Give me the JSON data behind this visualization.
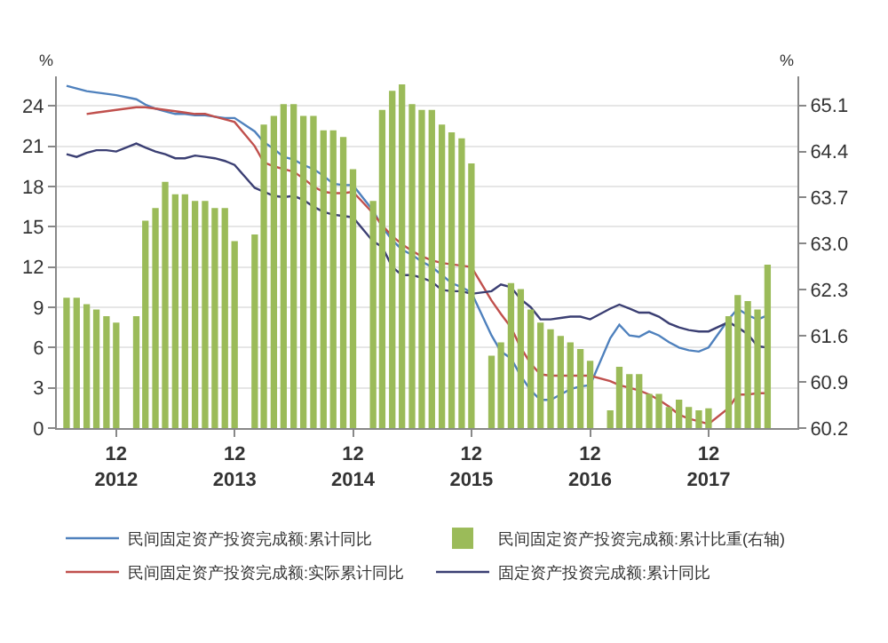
{
  "chart_data": {
    "type": "bar",
    "ylabel": "%",
    "y2label": "%",
    "x": [
      "2012-07",
      "2012-08",
      "2012-09",
      "2012-10",
      "2012-11",
      "2012-12",
      "2013-02",
      "2013-03",
      "2013-04",
      "2013-05",
      "2013-06",
      "2013-07",
      "2013-08",
      "2013-09",
      "2013-10",
      "2013-11",
      "2013-12",
      "2014-02",
      "2014-03",
      "2014-04",
      "2014-05",
      "2014-06",
      "2014-07",
      "2014-08",
      "2014-09",
      "2014-10",
      "2014-11",
      "2014-12",
      "2015-02",
      "2015-03",
      "2015-04",
      "2015-05",
      "2015-06",
      "2015-07",
      "2015-08",
      "2015-09",
      "2015-10",
      "2015-11",
      "2015-12",
      "2016-02",
      "2016-03",
      "2016-04",
      "2016-05",
      "2016-06",
      "2016-07",
      "2016-08",
      "2016-09",
      "2016-10",
      "2016-11",
      "2016-12",
      "2017-02",
      "2017-03",
      "2017-04",
      "2017-05",
      "2017-06",
      "2017-07",
      "2017-08",
      "2017-09",
      "2017-10",
      "2017-11",
      "2017-12",
      "2018-02",
      "2018-03",
      "2018-04",
      "2018-05",
      "2018-06"
    ],
    "series": [
      {
        "name": "民间固定资产投资完成额:累计比重(右轴)",
        "axis": "y2",
        "color": "#9bbb59",
        "values": [
          62.18,
          62.18,
          62.08,
          62.0,
          61.9,
          61.8,
          61.9,
          63.35,
          63.54,
          63.94,
          63.75,
          63.75,
          63.65,
          63.65,
          63.54,
          63.54,
          63.04,
          63.14,
          64.81,
          64.94,
          65.12,
          65.12,
          64.94,
          64.94,
          64.72,
          64.72,
          64.62,
          64.13,
          63.65,
          65.03,
          65.32,
          65.42,
          65.12,
          65.03,
          65.03,
          64.81,
          64.69,
          64.6,
          64.22,
          61.3,
          61.5,
          62.4,
          62.31,
          62.0,
          61.8,
          61.7,
          61.6,
          61.5,
          61.4,
          61.22,
          60.47,
          61.13,
          61.02,
          61.02,
          60.72,
          60.72,
          60.52,
          60.63,
          60.52,
          60.47,
          60.5,
          61.9,
          62.22,
          62.13,
          62.0,
          62.68
        ]
      },
      {
        "name": "民间固定资产投资完成额:累计同比",
        "type": "line",
        "color": "#4f81bd",
        "values": [
          25.5,
          25.3,
          25.1,
          25.0,
          24.9,
          24.8,
          24.5,
          24.1,
          23.8,
          23.6,
          23.4,
          23.4,
          23.3,
          23.3,
          23.2,
          23.1,
          23.1,
          22.1,
          21.3,
          20.8,
          20.2,
          20.0,
          19.6,
          19.3,
          18.8,
          18.2,
          18.1,
          18.1,
          16.2,
          15.0,
          14.0,
          13.3,
          12.9,
          12.4,
          12.0,
          11.4,
          10.8,
          10.5,
          10.1,
          6.9,
          5.7,
          5.2,
          3.9,
          2.8,
          2.1,
          2.1,
          2.5,
          2.9,
          3.1,
          3.2,
          6.7,
          7.7,
          6.9,
          6.8,
          7.2,
          6.9,
          6.4,
          6.0,
          5.8,
          5.7,
          6.0,
          8.1,
          8.9,
          8.4,
          8.1,
          8.4
        ]
      },
      {
        "name": "民间固定资产投资完成额:实际累计同比",
        "type": "line",
        "color": "#c0504d",
        "values": [
          null,
          null,
          23.4,
          23.5,
          23.6,
          23.7,
          23.9,
          23.9,
          23.8,
          23.7,
          23.6,
          23.5,
          23.4,
          23.4,
          23.2,
          23.0,
          22.8,
          21.0,
          19.8,
          19.5,
          19.3,
          19.1,
          18.6,
          18.0,
          17.6,
          17.5,
          17.5,
          17.6,
          16.0,
          15.1,
          14.3,
          13.7,
          13.2,
          12.8,
          12.5,
          12.3,
          12.2,
          12.1,
          12.0,
          9.5,
          8.5,
          7.5,
          6.0,
          4.8,
          4.0,
          3.9,
          3.9,
          3.9,
          3.9,
          3.9,
          3.5,
          3.2,
          3.0,
          2.8,
          2.5,
          2.1,
          1.6,
          1.0,
          0.7,
          0.5,
          0.3,
          1.5,
          2.5,
          2.5,
          2.6,
          2.6
        ]
      },
      {
        "name": "固定资产投资完成额:累计同比",
        "type": "line",
        "color": "#3b3f73",
        "values": [
          20.4,
          20.2,
          20.5,
          20.7,
          20.7,
          20.6,
          21.2,
          20.9,
          20.6,
          20.4,
          20.1,
          20.1,
          20.3,
          20.2,
          20.1,
          19.9,
          19.6,
          17.9,
          17.6,
          17.3,
          17.2,
          17.3,
          17.0,
          16.5,
          16.1,
          15.9,
          15.8,
          15.7,
          13.9,
          13.5,
          12.0,
          11.4,
          11.4,
          11.2,
          10.9,
          10.3,
          10.2,
          10.2,
          10.0,
          10.2,
          10.7,
          10.5,
          9.6,
          9.0,
          8.1,
          8.1,
          8.2,
          8.3,
          8.3,
          8.1,
          8.9,
          9.2,
          8.9,
          8.6,
          8.6,
          8.3,
          7.8,
          7.5,
          7.3,
          7.2,
          7.2,
          7.9,
          7.5,
          7.0,
          6.1,
          6.0
        ]
      }
    ],
    "xlim": [
      "2012-06-01",
      "2018-09-01"
    ],
    "xticks": [
      {
        "value": "2012-12",
        "label": "12\n2012"
      },
      {
        "value": "2013-12",
        "label": "12\n2013"
      },
      {
        "value": "2014-12",
        "label": "12\n2014"
      },
      {
        "value": "2015-12",
        "label": "12\n2015"
      },
      {
        "value": "2016-12",
        "label": "12\n2016"
      },
      {
        "value": "2017-12",
        "label": "12\n2017"
      }
    ],
    "ylim": [
      0,
      26.2
    ],
    "yticks": [
      0,
      3,
      6,
      9,
      12,
      15,
      18,
      21,
      24
    ],
    "y2lim": [
      60.2,
      65.54
    ],
    "y2ticks": [
      60.2,
      60.9,
      61.6,
      62.3,
      {
        "value": 63,
        "label": "63.0"
      },
      63.7,
      64.4,
      65.1
    ],
    "grid": "y",
    "legend": "bottom",
    "marker": "none",
    "line_style": "solid"
  }
}
